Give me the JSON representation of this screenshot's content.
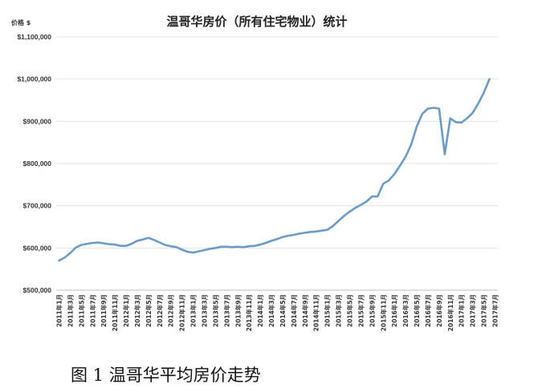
{
  "caption": "图 1 温哥华平均房价走势",
  "chart_data": {
    "type": "line",
    "title": "温哥华房价（所有住宅物业）统计",
    "ylabel": "价格 $",
    "xlabel": "",
    "ylim": [
      500000,
      1100000
    ],
    "yticks": [
      500000,
      600000,
      700000,
      800000,
      900000,
      1000000,
      1100000
    ],
    "ytick_labels": [
      "$500,000",
      "$600,000",
      "$700,000",
      "$800,000",
      "$900,000",
      "$1,000,000",
      "$1,100,000"
    ],
    "grid": true,
    "line_color": "#6b9bc6",
    "x": [
      "2011年1月",
      "2011年2月",
      "2011年3月",
      "2011年4月",
      "2011年5月",
      "2011年6月",
      "2011年7月",
      "2011年8月",
      "2011年9月",
      "2011年10月",
      "2011年11月",
      "2011年12月",
      "2012年1月",
      "2012年2月",
      "2012年3月",
      "2012年4月",
      "2012年5月",
      "2012年6月",
      "2012年7月",
      "2012年8月",
      "2012年9月",
      "2012年10月",
      "2012年11月",
      "2012年12月",
      "2013年1月",
      "2013年2月",
      "2013年3月",
      "2013年4月",
      "2013年5月",
      "2013年6月",
      "2013年7月",
      "2013年8月",
      "2013年9月",
      "2013年10月",
      "2013年11月",
      "2013年12月",
      "2014年1月",
      "2014年2月",
      "2014年3月",
      "2014年4月",
      "2014年5月",
      "2014年6月",
      "2014年7月",
      "2014年8月",
      "2014年9月",
      "2014年10月",
      "2014年11月",
      "2014年12月",
      "2015年1月",
      "2015年2月",
      "2015年3月",
      "2015年4月",
      "2015年5月",
      "2015年6月",
      "2015年7月",
      "2015年8月",
      "2015年9月",
      "2015年10月",
      "2015年11月",
      "2015年12月",
      "2016年1月",
      "2016年2月",
      "2016年3月",
      "2016年4月",
      "2016年5月",
      "2016年6月",
      "2016年7月",
      "2016年8月",
      "2016年9月",
      "2016年10月",
      "2016年11月",
      "2016年12月",
      "2017年1月",
      "2017年2月",
      "2017年3月",
      "2017年4月",
      "2017年5月",
      "2017年6月",
      "2017年7月"
    ],
    "values": [
      570000,
      577000,
      588000,
      601000,
      607000,
      610000,
      612000,
      613000,
      611000,
      609000,
      608000,
      605000,
      605000,
      610000,
      617000,
      620000,
      624000,
      619000,
      613000,
      607000,
      604000,
      602000,
      596000,
      591000,
      589000,
      592000,
      595000,
      598000,
      600000,
      603000,
      603000,
      602000,
      603000,
      602000,
      604000,
      605000,
      608000,
      612000,
      617000,
      621000,
      626000,
      629000,
      631000,
      634000,
      636000,
      638000,
      639000,
      641000,
      643000,
      652000,
      664000,
      676000,
      686000,
      695000,
      702000,
      710000,
      722000,
      722000,
      752000,
      760000,
      775000,
      795000,
      816000,
      845000,
      888000,
      918000,
      930000,
      932000,
      930000,
      822000,
      907000,
      898000,
      897000,
      907000,
      920000,
      942000,
      968000,
      1000000,
      null
    ],
    "xtick_labels": [
      "2011年1月",
      "2011年3月",
      "2011年5月",
      "2011年7月",
      "2011年9月",
      "2011年11月",
      "2012年1月",
      "2012年3月",
      "2012年5月",
      "2012年7月",
      "2012年9月",
      "2012年11月",
      "2013年1月",
      "2013年3月",
      "2013年5月",
      "2013年7月",
      "2013年9月",
      "2013年11月",
      "2014年1月",
      "2014年3月",
      "2014年5月",
      "2014年7月",
      "2014年9月",
      "2014年11月",
      "2015年1月",
      "2015年3月",
      "2015年5月",
      "2015年7月",
      "2015年9月",
      "2015年11月",
      "2016年1月",
      "2016年3月",
      "2016年5月",
      "2016年7月",
      "2016年9月",
      "2016年11月",
      "2017年1月",
      "2017年3月",
      "2017年5月",
      "2017年7月"
    ]
  }
}
